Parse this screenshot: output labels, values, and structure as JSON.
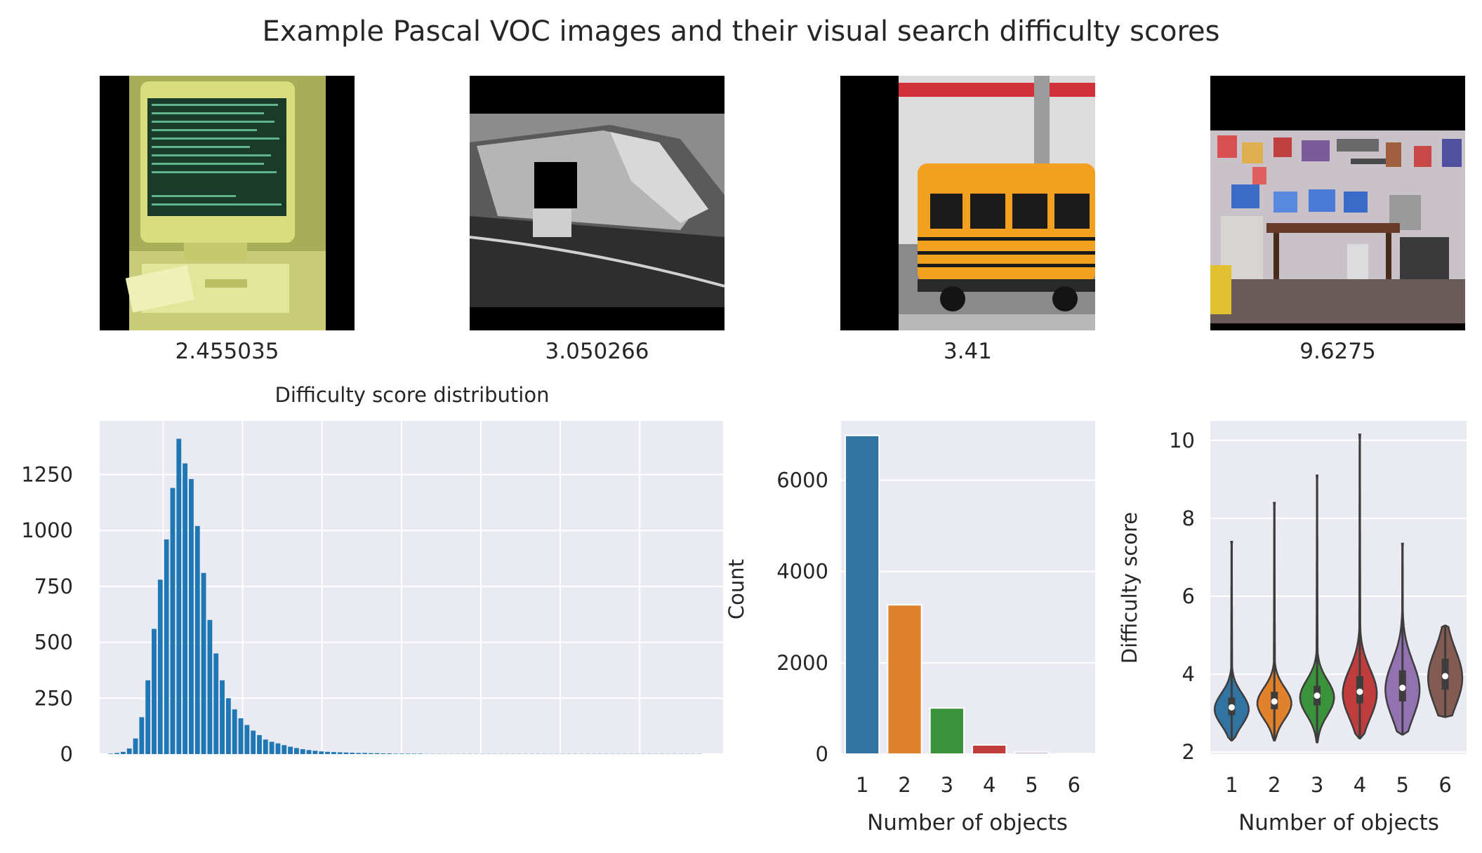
{
  "figure": {
    "title": "Example Pascal VOC images and their visual search difficulty scores"
  },
  "images": [
    {
      "name": "computer-monitor-photo",
      "score": "2.455035"
    },
    {
      "name": "car-interior-photo",
      "score": "3.050266"
    },
    {
      "name": "school-bus-photo",
      "score": "3.41"
    },
    {
      "name": "computer-room-photo",
      "score": "9.6275"
    }
  ],
  "colors": {
    "panel_bg": "#eaeaf2",
    "grid": "#ffffff",
    "hist_bar": "#1f77b4",
    "palette": [
      "#3274a1",
      "#e1812c",
      "#3a923a",
      "#c03d3e",
      "#9372b2",
      "#845b53"
    ]
  },
  "chart_data": [
    {
      "type": "bar",
      "subtype": "histogram",
      "title": "Difficulty score distribution",
      "xlabel": "",
      "ylabel": "",
      "xlim": [
        2.2,
        10.05
      ],
      "ylim": [
        0,
        1490
      ],
      "xticks": [
        3,
        4,
        5,
        6,
        7,
        8,
        9
      ],
      "yticks": [
        0,
        250,
        500,
        750,
        1000,
        1250
      ],
      "bin_width": 0.078,
      "bins_start": 2.3,
      "values": [
        2,
        5,
        10,
        25,
        70,
        165,
        330,
        560,
        780,
        960,
        1190,
        1410,
        1300,
        1230,
        1020,
        810,
        600,
        450,
        330,
        250,
        200,
        160,
        130,
        105,
        85,
        65,
        55,
        48,
        40,
        33,
        27,
        22,
        18,
        15,
        12,
        10,
        9,
        8,
        7,
        6,
        5,
        5,
        4,
        4,
        3,
        3,
        2,
        2,
        2,
        2,
        2,
        1,
        1,
        1,
        1,
        1,
        1,
        1,
        1,
        1,
        1,
        1,
        1,
        1,
        1,
        1,
        1,
        1,
        1,
        1,
        1,
        1,
        1,
        1,
        1,
        1,
        1,
        1,
        1,
        1,
        1,
        1,
        1,
        1,
        1,
        1,
        1,
        1,
        1,
        1,
        1,
        1,
        1,
        1,
        1,
        1
      ]
    },
    {
      "type": "bar",
      "xlabel": "Number of objects",
      "ylabel": "Count",
      "categories": [
        "1",
        "2",
        "3",
        "4",
        "5",
        "6"
      ],
      "values": [
        6980,
        3270,
        1010,
        200,
        40,
        12
      ],
      "ylim": [
        0,
        7300
      ],
      "yticks": [
        0,
        2000,
        4000,
        6000
      ]
    },
    {
      "type": "violin",
      "xlabel": "Number of objects",
      "ylabel": "Difficulty score",
      "categories": [
        "1",
        "2",
        "3",
        "4",
        "5",
        "6"
      ],
      "ylim": [
        1.95,
        10.5
      ],
      "yticks": [
        2,
        4,
        6,
        8,
        10
      ],
      "series": [
        {
          "min": 2.3,
          "max": 7.4,
          "median": 3.15,
          "q1": 2.95,
          "q3": 3.4
        },
        {
          "min": 2.3,
          "max": 8.4,
          "median": 3.3,
          "q1": 3.1,
          "q3": 3.55
        },
        {
          "min": 2.25,
          "max": 9.1,
          "median": 3.45,
          "q1": 3.2,
          "q3": 3.7
        },
        {
          "min": 2.35,
          "max": 10.15,
          "median": 3.55,
          "q1": 3.25,
          "q3": 3.95
        },
        {
          "min": 2.45,
          "max": 7.35,
          "median": 3.65,
          "q1": 3.3,
          "q3": 4.1
        },
        {
          "min": 2.9,
          "max": 5.25,
          "median": 3.95,
          "q1": 3.6,
          "q3": 4.4
        }
      ]
    }
  ]
}
